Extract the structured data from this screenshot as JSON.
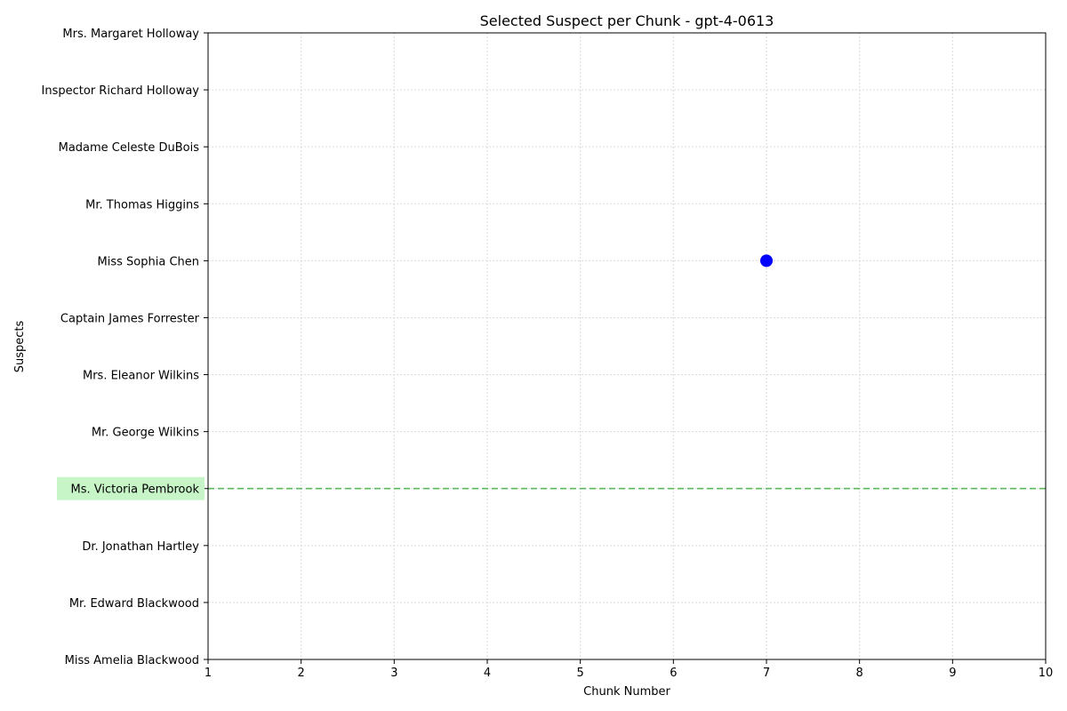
{
  "chart_data": {
    "type": "scatter",
    "title": "Selected Suspect per Chunk - gpt-4-0613",
    "xlabel": "Chunk Number",
    "ylabel": "Suspects",
    "xlim": [
      1,
      10
    ],
    "xticks": [
      1,
      2,
      3,
      4,
      5,
      6,
      7,
      8,
      9,
      10
    ],
    "categories": [
      "Miss Amelia Blackwood",
      "Mr. Edward Blackwood",
      "Dr. Jonathan Hartley",
      "Ms. Victoria Pembrook",
      "Mr. George Wilkins",
      "Mrs. Eleanor Wilkins",
      "Captain James Forrester",
      "Miss Sophia Chen",
      "Mr. Thomas Higgins",
      "Madame Celeste DuBois",
      "Inspector Richard Holloway",
      "Mrs. Margaret Holloway"
    ],
    "points": [
      {
        "x": 7,
        "y": "Miss Sophia Chen"
      }
    ],
    "highlight": "Ms. Victoria Pembrook",
    "grid": true,
    "colors": {
      "point": "#0000ff",
      "highlight_line": "#5cb85c",
      "highlight_label_bg": "#c8f5c8",
      "grid": "#d9d9d9"
    }
  }
}
